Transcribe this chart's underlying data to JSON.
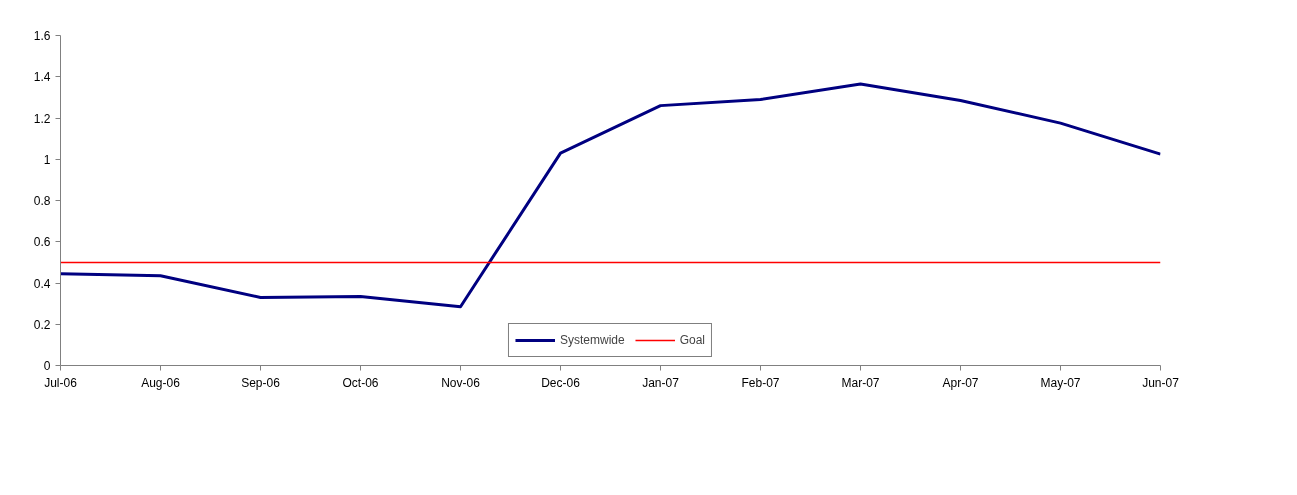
{
  "chart_data": {
    "type": "line",
    "categories": [
      "Jul-06",
      "Aug-06",
      "Sep-06",
      "Oct-06",
      "Nov-06",
      "Dec-06",
      "Jan-07",
      "Feb-07",
      "Mar-07",
      "Apr-07",
      "May-07",
      "Jun-07"
    ],
    "series": [
      {
        "name": "Systemwide",
        "color": "#000080",
        "values": [
          0.445,
          0.435,
          0.33,
          0.335,
          0.285,
          1.03,
          1.26,
          1.29,
          1.365,
          1.285,
          1.175,
          1.025
        ]
      },
      {
        "name": "Goal",
        "color": "#ff0000",
        "values": [
          0.5,
          0.5,
          0.5,
          0.5,
          0.5,
          0.5,
          0.5,
          0.5,
          0.5,
          0.5,
          0.5,
          0.5
        ]
      }
    ],
    "ylim": [
      0,
      1.6
    ],
    "yticks": [
      0,
      0.2,
      0.4,
      0.6,
      0.8,
      1,
      1.2,
      1.4,
      1.6
    ],
    "grid": false,
    "legend": "bottom",
    "line_style": "solid"
  }
}
